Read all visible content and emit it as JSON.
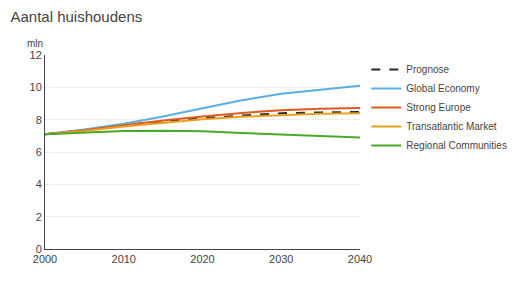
{
  "chart_data": {
    "type": "line",
    "title": "Aantal huishoudens",
    "ylabel": "mln",
    "x": [
      2000,
      2005,
      2010,
      2015,
      2020,
      2025,
      2030,
      2035,
      2040
    ],
    "series": [
      {
        "name": "Prognose",
        "color": "#2b2b2b",
        "line_style": "dashed",
        "values": [
          7.1,
          7.35,
          7.65,
          7.9,
          8.1,
          8.25,
          8.4,
          8.45,
          8.48
        ]
      },
      {
        "name": "Global Economy",
        "color": "#5baee0",
        "line_style": "solid",
        "values": [
          7.1,
          7.4,
          7.75,
          8.2,
          8.7,
          9.2,
          9.6,
          9.85,
          10.1
        ]
      },
      {
        "name": "Strong Europe",
        "color": "#e05a20",
        "line_style": "solid",
        "values": [
          7.1,
          7.35,
          7.65,
          7.95,
          8.2,
          8.42,
          8.58,
          8.68,
          8.72
        ]
      },
      {
        "name": "Transatlantic Market",
        "color": "#e8a020",
        "line_style": "solid",
        "values": [
          7.1,
          7.3,
          7.58,
          7.82,
          8.02,
          8.18,
          8.28,
          8.36,
          8.4
        ]
      },
      {
        "name": "Regional Communities",
        "color": "#4aaa28",
        "line_style": "solid",
        "values": [
          7.1,
          7.22,
          7.3,
          7.32,
          7.28,
          7.18,
          7.08,
          6.98,
          6.9
        ]
      }
    ],
    "xlim": [
      2000,
      2040
    ],
    "xticks": [
      2000,
      2010,
      2020,
      2030,
      2040
    ],
    "ylim": [
      0,
      12
    ],
    "yticks": [
      0,
      2,
      4,
      6,
      8,
      10,
      12
    ],
    "grid": true,
    "legend": "right"
  }
}
